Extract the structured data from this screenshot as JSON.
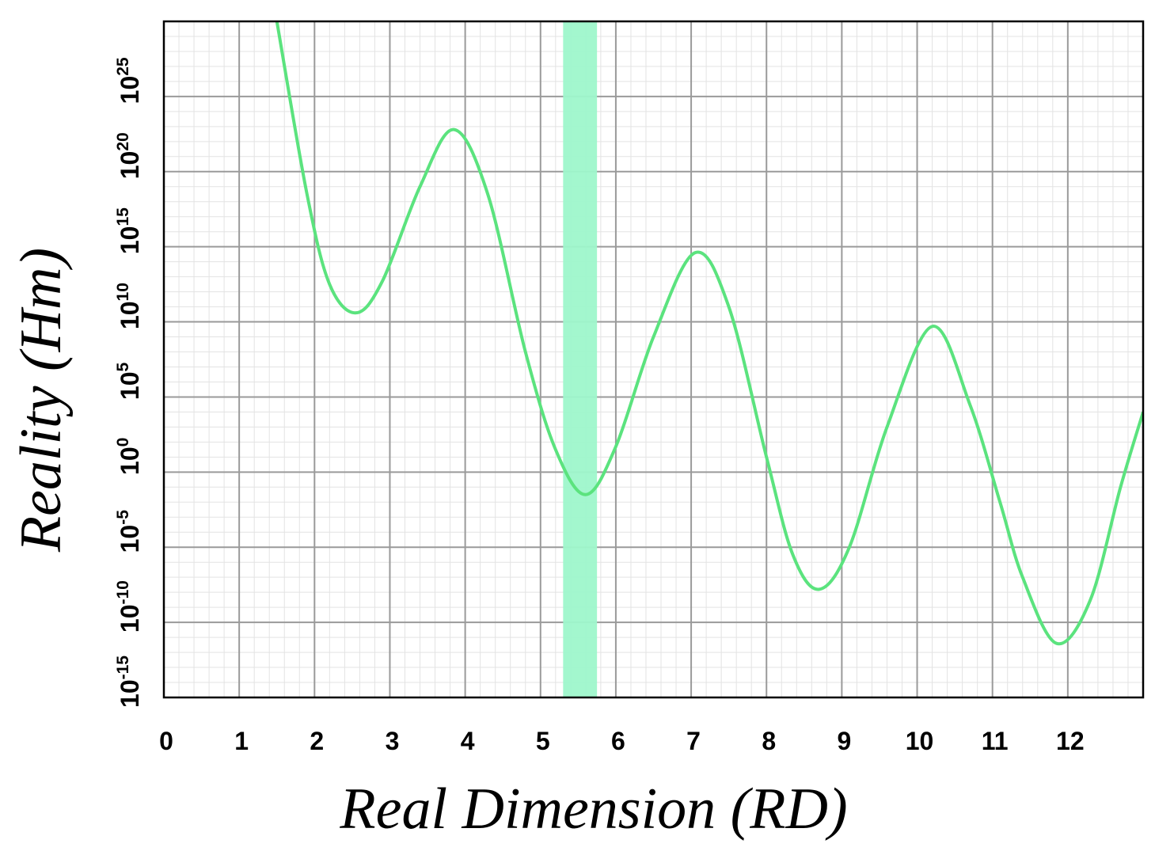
{
  "chart_data": {
    "type": "line",
    "title": "",
    "xlabel": "Real Dimension (RD)",
    "ylabel": "Reality (Hm)",
    "xlim": [
      0,
      13
    ],
    "ylim_log10": [
      -15,
      30
    ],
    "y_scale": "log",
    "grid": true,
    "x_tick_labels": [
      "0",
      "1",
      "2",
      "3",
      "4",
      "5",
      "6",
      "7",
      "8",
      "9",
      "10",
      "11",
      "12"
    ],
    "y_ticks": [
      {
        "base": "10",
        "exp": "-15"
      },
      {
        "base": "10",
        "exp": "-10"
      },
      {
        "base": "10",
        "exp": "-5"
      },
      {
        "base": "10",
        "exp": "0"
      },
      {
        "base": "10",
        "exp": "5"
      },
      {
        "base": "10",
        "exp": "10"
      },
      {
        "base": "10",
        "exp": "15"
      },
      {
        "base": "10",
        "exp": "20"
      },
      {
        "base": "10",
        "exp": "25"
      }
    ],
    "series": [
      {
        "color": "#5be37e",
        "x": [
          1.5,
          1.9,
          2.2,
          2.55,
          2.9,
          3.4,
          3.85,
          4.3,
          4.8,
          5.2,
          5.6,
          6.0,
          6.5,
          7.05,
          7.5,
          8.0,
          8.35,
          8.7,
          9.1,
          9.6,
          10.2,
          10.7,
          11.1,
          11.4,
          11.85,
          12.3,
          12.7,
          13.0
        ],
        "y": [
          30,
          18.5,
          12.5,
          10.6,
          12.7,
          19.0,
          22.8,
          18.5,
          8.0,
          1.5,
          -1.5,
          1.7,
          9.0,
          14.6,
          11.0,
          1.0,
          -5.5,
          -7.8,
          -5.0,
          3.0,
          9.7,
          4.5,
          -2.0,
          -7.0,
          -11.4,
          -8.5,
          -1.0,
          4.0
        ]
      }
    ],
    "highlight_band": {
      "x": [
        5.3,
        5.75
      ],
      "color": "#9ef7cb"
    }
  }
}
